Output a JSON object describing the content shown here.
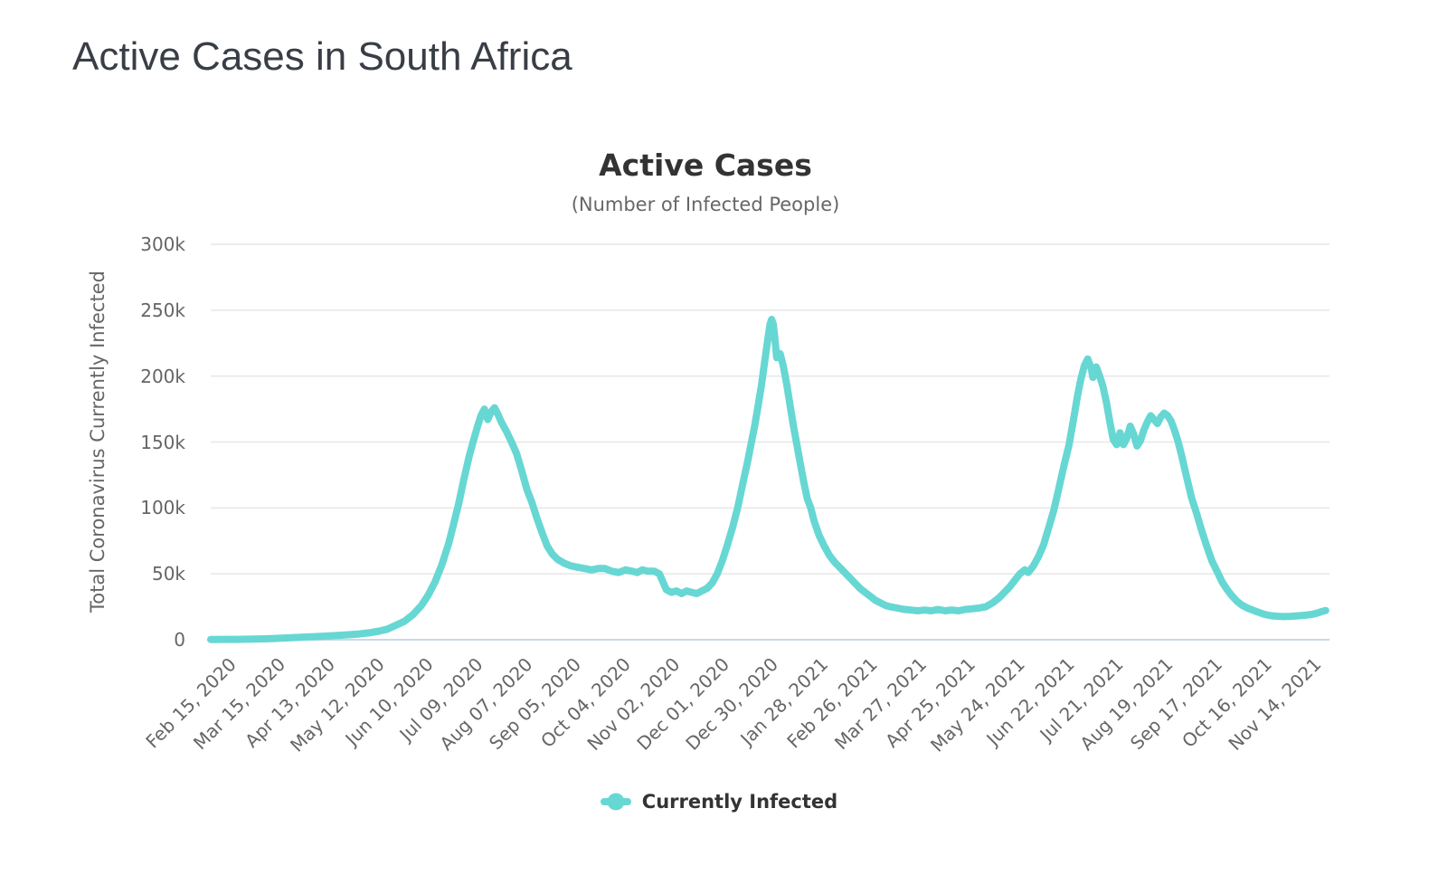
{
  "page": {
    "title": "Active Cases in South Africa"
  },
  "colors": {
    "line": "#67d7d3",
    "grid": "#e7e7e7",
    "axis_line": "#ccd6eb",
    "page_title": "#393e46",
    "chart_title": "#333333",
    "muted_text": "#666666"
  },
  "chart_data": {
    "type": "line",
    "title": "Active Cases",
    "subtitle": "(Number of Infected People)",
    "xlabel": "",
    "ylabel": "Total Coronavirus Currently Infected",
    "legend_position": "bottom-center",
    "grid": "horizontal-only",
    "y_unit": "thousands of people (k)",
    "ylim": [
      0,
      300
    ],
    "xlim_days": [
      0,
      658
    ],
    "x_tick_interval_days": 29,
    "y_ticks": [
      {
        "label": "0",
        "value": 0
      },
      {
        "label": "50k",
        "value": 50
      },
      {
        "label": "100k",
        "value": 100
      },
      {
        "label": "150k",
        "value": 150
      },
      {
        "label": "200k",
        "value": 200
      },
      {
        "label": "250k",
        "value": 250
      },
      {
        "label": "300k",
        "value": 300
      }
    ],
    "x_ticks": [
      {
        "label": "Feb 15, 2020",
        "day": 0
      },
      {
        "label": "Mar 15, 2020",
        "day": 29
      },
      {
        "label": "Apr 13, 2020",
        "day": 58
      },
      {
        "label": "May 12, 2020",
        "day": 87
      },
      {
        "label": "Jun 10, 2020",
        "day": 116
      },
      {
        "label": "Jul 09, 2020",
        "day": 145
      },
      {
        "label": "Aug 07, 2020",
        "day": 174
      },
      {
        "label": "Sep 05, 2020",
        "day": 203
      },
      {
        "label": "Oct 04, 2020",
        "day": 232
      },
      {
        "label": "Nov 02, 2020",
        "day": 261
      },
      {
        "label": "Dec 01, 2020",
        "day": 290
      },
      {
        "label": "Dec 30, 2020",
        "day": 319
      },
      {
        "label": "Jan 28, 2021",
        "day": 348
      },
      {
        "label": "Feb 26, 2021",
        "day": 377
      },
      {
        "label": "Mar 27, 2021",
        "day": 406
      },
      {
        "label": "Apr 25, 2021",
        "day": 435
      },
      {
        "label": "May 24, 2021",
        "day": 464
      },
      {
        "label": "Jun 22, 2021",
        "day": 493
      },
      {
        "label": "Jul 21, 2021",
        "day": 522
      },
      {
        "label": "Aug 19, 2021",
        "day": 551
      },
      {
        "label": "Sep 17, 2021",
        "day": 580
      },
      {
        "label": "Oct 16, 2021",
        "day": 609
      },
      {
        "label": "Nov 14, 2021",
        "day": 638
      }
    ],
    "series": [
      {
        "name": "Currently Infected",
        "color": "#67d7d3",
        "points_day_valueK": [
          [
            0,
            0.2
          ],
          [
            8,
            0.3
          ],
          [
            15,
            0.3
          ],
          [
            22,
            0.4
          ],
          [
            29,
            0.6
          ],
          [
            36,
            0.9
          ],
          [
            43,
            1.3
          ],
          [
            50,
            1.7
          ],
          [
            58,
            2.1
          ],
          [
            65,
            2.6
          ],
          [
            72,
            3.1
          ],
          [
            79,
            3.6
          ],
          [
            87,
            4.3
          ],
          [
            93,
            5.2
          ],
          [
            99,
            6.5
          ],
          [
            104,
            8
          ],
          [
            109,
            11
          ],
          [
            114,
            14
          ],
          [
            119,
            19
          ],
          [
            124,
            26
          ],
          [
            128,
            34
          ],
          [
            132,
            44
          ],
          [
            136,
            57
          ],
          [
            140,
            73
          ],
          [
            143,
            88
          ],
          [
            146,
            104
          ],
          [
            149,
            122
          ],
          [
            152,
            139
          ],
          [
            155,
            153
          ],
          [
            157,
            162
          ],
          [
            159,
            170
          ],
          [
            161,
            175
          ],
          [
            163,
            167
          ],
          [
            165,
            173
          ],
          [
            167,
            176
          ],
          [
            169,
            171
          ],
          [
            171,
            165
          ],
          [
            174,
            158
          ],
          [
            177,
            150
          ],
          [
            180,
            141
          ],
          [
            183,
            128
          ],
          [
            186,
            114
          ],
          [
            189,
            104
          ],
          [
            192,
            92
          ],
          [
            195,
            81
          ],
          [
            198,
            71
          ],
          [
            201,
            65
          ],
          [
            204,
            61
          ],
          [
            208,
            58
          ],
          [
            212,
            56
          ],
          [
            216,
            55
          ],
          [
            220,
            54
          ],
          [
            224,
            53
          ],
          [
            228,
            54
          ],
          [
            232,
            54
          ],
          [
            236,
            52
          ],
          [
            240,
            51
          ],
          [
            244,
            53
          ],
          [
            248,
            52
          ],
          [
            251,
            51
          ],
          [
            254,
            53
          ],
          [
            257,
            52
          ],
          [
            261,
            52
          ],
          [
            264,
            50
          ],
          [
            266,
            44
          ],
          [
            268,
            38
          ],
          [
            271,
            36
          ],
          [
            274,
            37
          ],
          [
            277,
            35
          ],
          [
            280,
            37
          ],
          [
            283,
            36
          ],
          [
            286,
            35
          ],
          [
            289,
            37
          ],
          [
            292,
            39
          ],
          [
            295,
            43
          ],
          [
            298,
            50
          ],
          [
            301,
            60
          ],
          [
            304,
            72
          ],
          [
            307,
            85
          ],
          [
            310,
            100
          ],
          [
            313,
            118
          ],
          [
            316,
            136
          ],
          [
            318,
            149
          ],
          [
            320,
            162
          ],
          [
            322,
            177
          ],
          [
            324,
            193
          ],
          [
            326,
            212
          ],
          [
            328,
            230
          ],
          [
            329,
            239
          ],
          [
            330,
            243
          ],
          [
            331,
            239
          ],
          [
            332,
            228
          ],
          [
            333,
            214
          ],
          [
            335,
            217
          ],
          [
            337,
            207
          ],
          [
            339,
            193
          ],
          [
            341,
            177
          ],
          [
            343,
            161
          ],
          [
            345,
            147
          ],
          [
            347,
            133
          ],
          [
            349,
            119
          ],
          [
            351,
            107
          ],
          [
            353,
            100
          ],
          [
            355,
            90
          ],
          [
            358,
            79
          ],
          [
            361,
            71
          ],
          [
            364,
            64
          ],
          [
            367,
            59
          ],
          [
            370,
            55
          ],
          [
            373,
            51
          ],
          [
            376,
            47
          ],
          [
            379,
            43
          ],
          [
            382,
            39
          ],
          [
            385,
            36
          ],
          [
            388,
            33
          ],
          [
            391,
            30
          ],
          [
            394,
            28
          ],
          [
            397,
            26
          ],
          [
            400,
            25
          ],
          [
            404,
            24
          ],
          [
            408,
            23
          ],
          [
            412,
            22.5
          ],
          [
            416,
            22
          ],
          [
            420,
            22.5
          ],
          [
            424,
            22
          ],
          [
            428,
            23
          ],
          [
            432,
            22
          ],
          [
            436,
            22.5
          ],
          [
            440,
            22
          ],
          [
            444,
            23
          ],
          [
            448,
            23.5
          ],
          [
            452,
            24
          ],
          [
            456,
            25
          ],
          [
            460,
            28
          ],
          [
            464,
            32
          ],
          [
            467,
            36
          ],
          [
            470,
            40
          ],
          [
            473,
            45
          ],
          [
            476,
            50
          ],
          [
            479,
            53
          ],
          [
            481,
            51
          ],
          [
            484,
            56
          ],
          [
            487,
            63
          ],
          [
            490,
            72
          ],
          [
            493,
            85
          ],
          [
            496,
            98
          ],
          [
            499,
            115
          ],
          [
            502,
            132
          ],
          [
            505,
            148
          ],
          [
            508,
            170
          ],
          [
            510,
            185
          ],
          [
            512,
            198
          ],
          [
            514,
            208
          ],
          [
            516,
            213
          ],
          [
            518,
            206
          ],
          [
            519,
            199
          ],
          [
            521,
            207
          ],
          [
            523,
            200
          ],
          [
            525,
            192
          ],
          [
            527,
            180
          ],
          [
            529,
            165
          ],
          [
            531,
            152
          ],
          [
            533,
            148
          ],
          [
            535,
            157
          ],
          [
            537,
            148
          ],
          [
            539,
            153
          ],
          [
            541,
            162
          ],
          [
            543,
            156
          ],
          [
            545,
            147
          ],
          [
            547,
            151
          ],
          [
            549,
            159
          ],
          [
            551,
            165
          ],
          [
            553,
            170
          ],
          [
            555,
            167
          ],
          [
            557,
            164
          ],
          [
            559,
            169
          ],
          [
            561,
            172
          ],
          [
            563,
            170
          ],
          [
            565,
            166
          ],
          [
            567,
            159
          ],
          [
            569,
            151
          ],
          [
            571,
            141
          ],
          [
            573,
            130
          ],
          [
            575,
            119
          ],
          [
            577,
            108
          ],
          [
            580,
            96
          ],
          [
            583,
            83
          ],
          [
            586,
            71
          ],
          [
            589,
            60
          ],
          [
            592,
            52
          ],
          [
            595,
            44
          ],
          [
            598,
            38
          ],
          [
            601,
            33
          ],
          [
            604,
            29
          ],
          [
            607,
            26
          ],
          [
            610,
            24
          ],
          [
            613,
            22.5
          ],
          [
            616,
            21
          ],
          [
            620,
            19.2
          ],
          [
            624,
            18.2
          ],
          [
            628,
            17.8
          ],
          [
            632,
            17.6
          ],
          [
            636,
            17.8
          ],
          [
            640,
            18.2
          ],
          [
            644,
            18.6
          ],
          [
            648,
            19.2
          ],
          [
            651,
            20.2
          ],
          [
            654,
            21.5
          ],
          [
            656,
            22.2
          ]
        ]
      }
    ]
  }
}
